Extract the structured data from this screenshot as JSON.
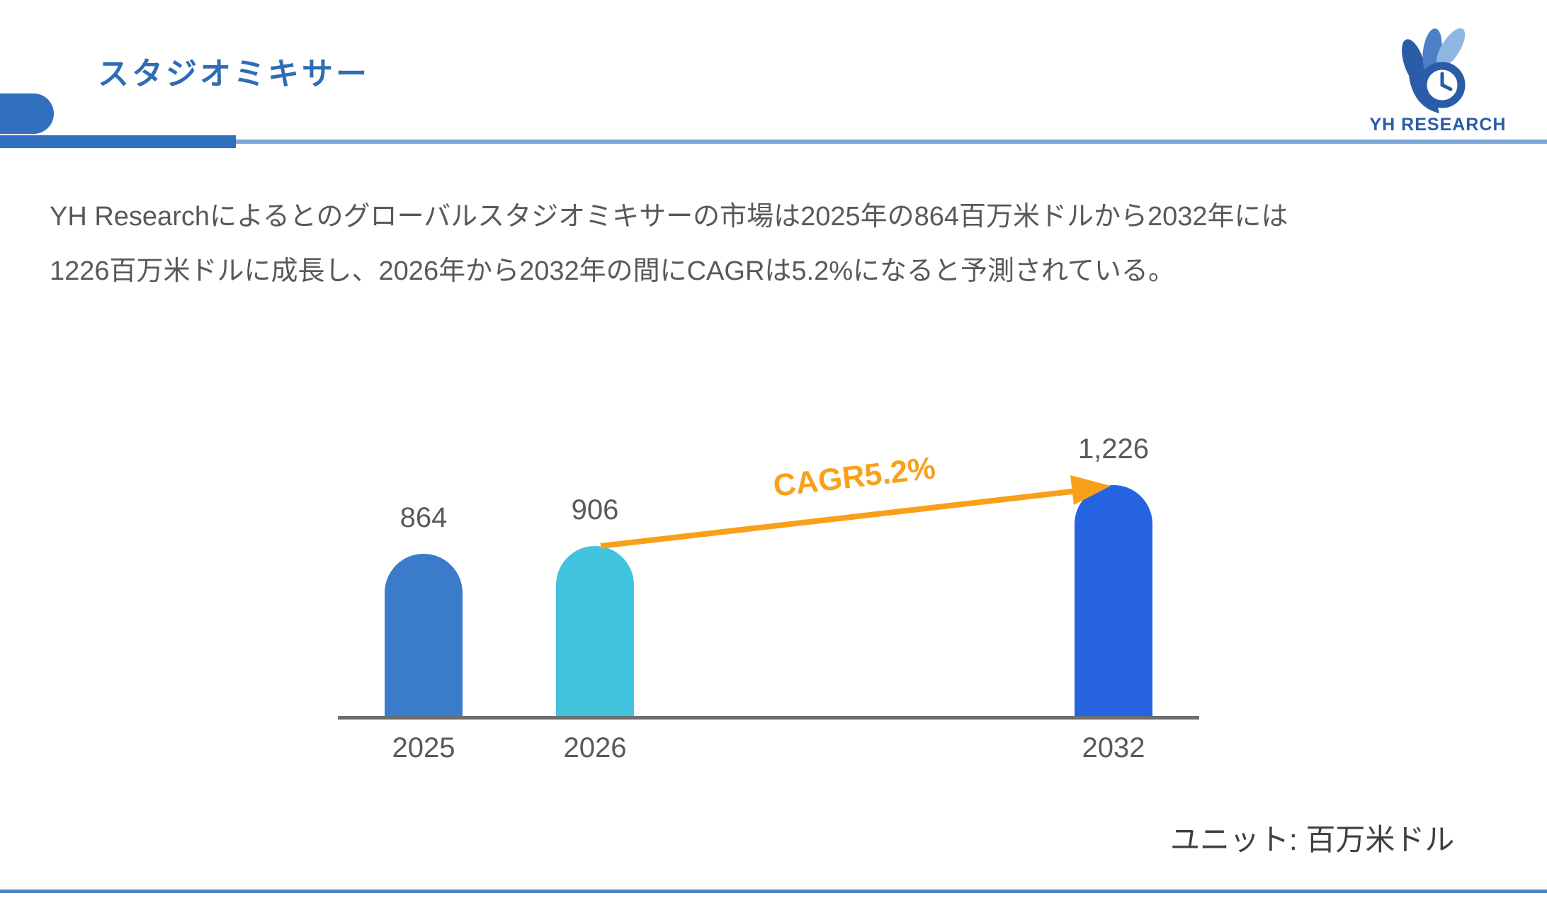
{
  "header": {
    "title": "スタジオミキサー",
    "logo_text": "YH RESEARCH"
  },
  "summary": {
    "line1": "YH Researchによるとのグローバルスタジオミキサーの市場は2025年の864百万米ドルから2032年には",
    "line2": "1226百万米ドルに成長し、2026年から2032年の間にCAGRは5.2%になると予測されている。"
  },
  "chart_data": {
    "type": "bar",
    "title": "",
    "categories": [
      "2025",
      "2026",
      "2032"
    ],
    "values": [
      864,
      906,
      1226
    ],
    "value_labels": [
      "864",
      "906",
      "1,226"
    ],
    "cagr_percent": 5.2,
    "cagr_label": "CAGR5.2%",
    "unit_label": "ユニット: 百万米ドル",
    "ylim": [
      0,
      1300
    ],
    "grid": false,
    "legend": false,
    "colors": {
      "bars": [
        "#3A7CC9",
        "#41C3DE",
        "#2563E0"
      ],
      "cagr": "#F9A01B",
      "axis": "#6E6E6E",
      "labels": "#595959"
    }
  }
}
